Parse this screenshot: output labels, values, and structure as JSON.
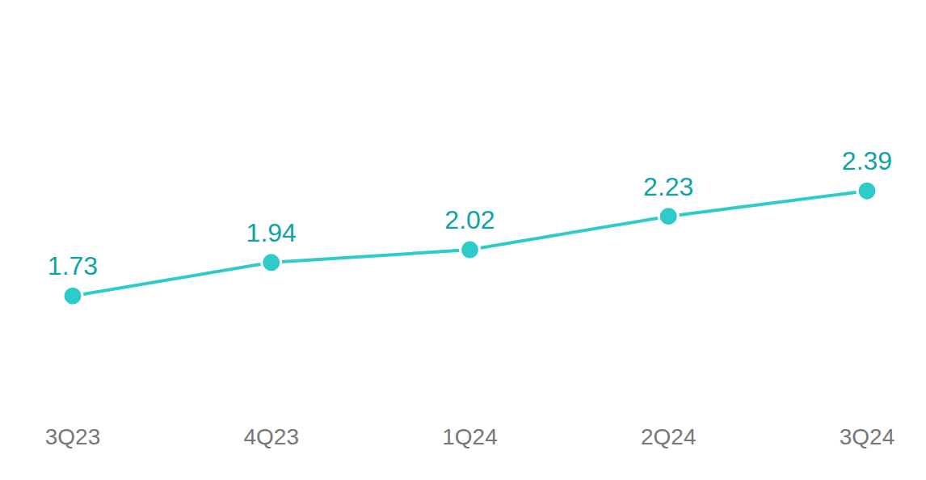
{
  "chart_data": {
    "type": "line",
    "categories": [
      "3Q23",
      "4Q23",
      "1Q24",
      "2Q24",
      "3Q24"
    ],
    "values": [
      1.73,
      1.94,
      2.02,
      2.23,
      2.39
    ],
    "color": "#2ecbcb",
    "ylim": [
      1,
      3
    ],
    "yticks": [],
    "data_labels": true,
    "tick_labels": "x",
    "marker": "circle"
  }
}
